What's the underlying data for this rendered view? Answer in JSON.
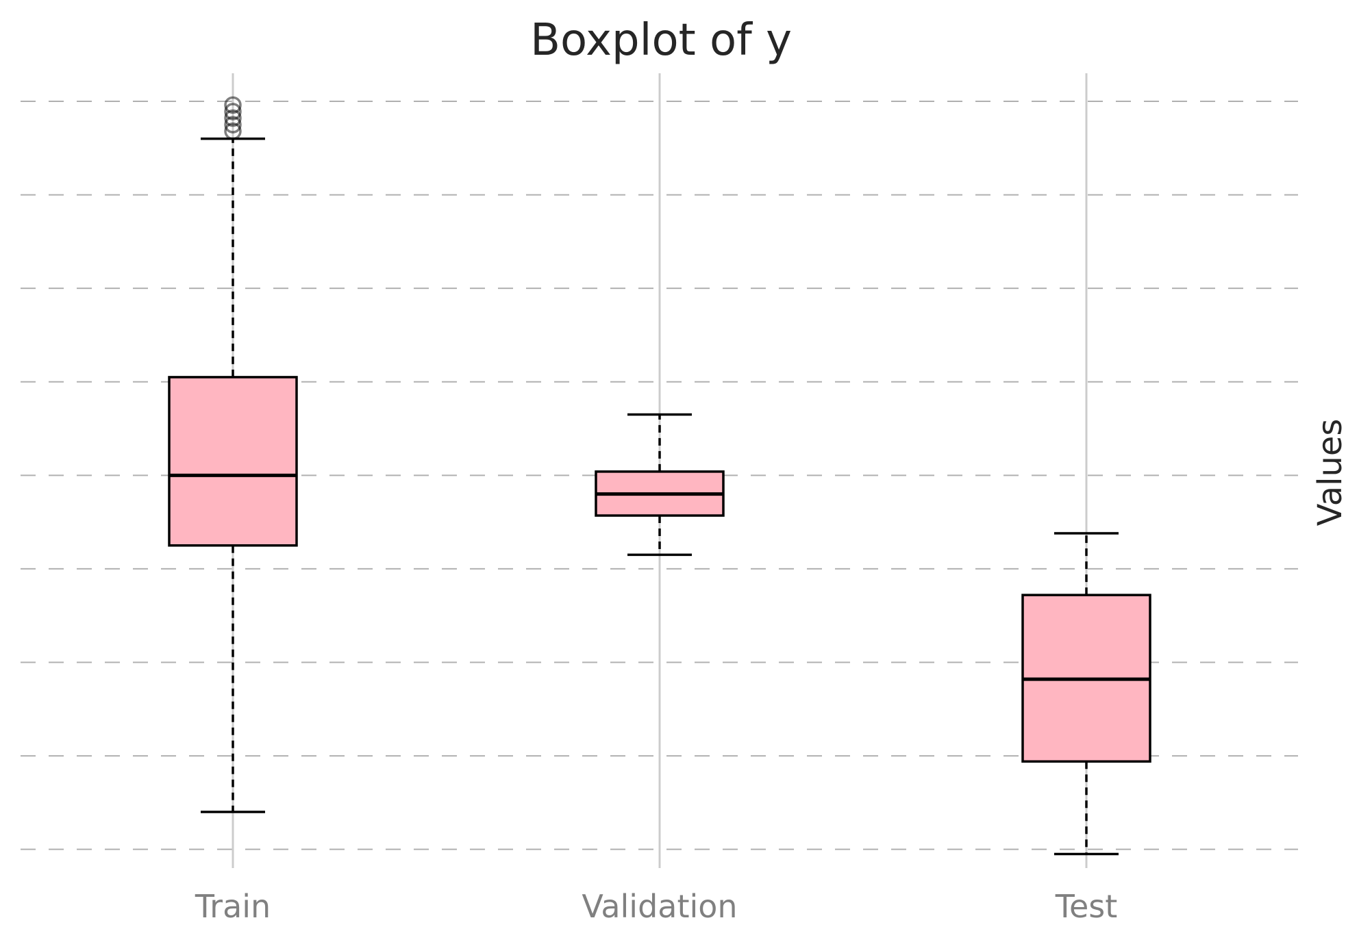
{
  "chart_data": {
    "type": "boxplot",
    "title": "Boxplot of y",
    "xlabel": "",
    "ylabel": "Values",
    "categories": [
      "Train",
      "Validation",
      "Test"
    ],
    "ylim": [
      -1.2,
      7.3
    ],
    "grid": {
      "y": true,
      "x": true,
      "y_style": "dashed"
    },
    "colors": {
      "box_fill": "#FFB6C1",
      "box_edge": "#000000",
      "grid": "#b0b0b0",
      "tick_text": "#808080",
      "title_text": "#262626"
    },
    "boxes": [
      {
        "category": "Train",
        "whisker_low": -0.6,
        "q1": 2.25,
        "median": 3.0,
        "q3": 4.05,
        "whisker_high": 6.6,
        "outliers": [
          6.68,
          6.75,
          6.82,
          6.89,
          6.96
        ]
      },
      {
        "category": "Validation",
        "whisker_low": 2.15,
        "q1": 2.57,
        "median": 2.8,
        "q3": 3.04,
        "whisker_high": 3.65,
        "outliers": []
      },
      {
        "category": "Test",
        "whisker_low": -1.05,
        "q1": -0.06,
        "median": 0.82,
        "q3": 1.72,
        "whisker_high": 2.38,
        "outliers": []
      }
    ]
  }
}
